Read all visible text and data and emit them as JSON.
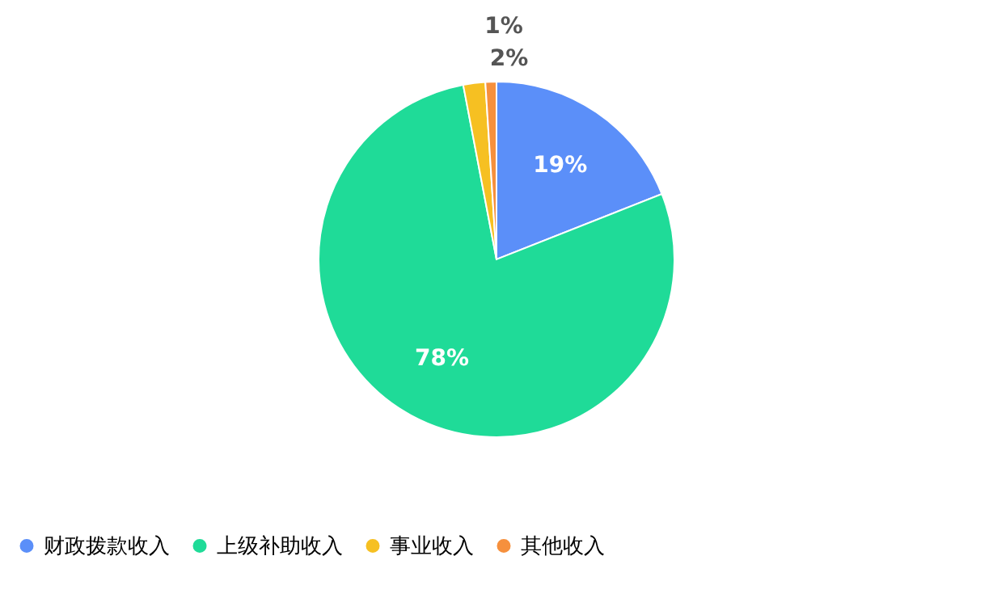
{
  "chart_data": {
    "type": "pie",
    "categories": [
      "财政拨款收入",
      "上级补助收入",
      "事业收入",
      "其他收入"
    ],
    "values": [
      19,
      78,
      2,
      1
    ],
    "colors": [
      "#5b8ff9",
      "#1fdb98",
      "#f6c022",
      "#f6903d"
    ],
    "value_labels": [
      "19%",
      "78%",
      "2%",
      "1%"
    ],
    "legend": "bottom"
  }
}
